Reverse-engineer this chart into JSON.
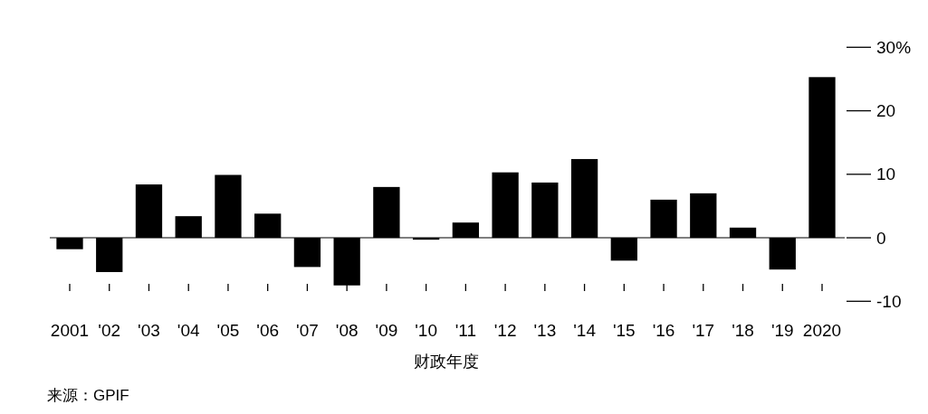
{
  "chart_data": {
    "type": "bar",
    "xlabel": "财政年度",
    "annotations": [
      "来源：GPIF"
    ],
    "categories": [
      "2001",
      "'02",
      "'03",
      "'04",
      "'05",
      "'06",
      "'07",
      "'08",
      "'09",
      "'10",
      "'11",
      "'12",
      "'13",
      "'14",
      "'15",
      "'16",
      "'17",
      "'18",
      "'19",
      "2020"
    ],
    "values": [
      -1.8,
      -5.4,
      8.4,
      3.4,
      9.9,
      3.8,
      -4.6,
      -7.5,
      8.0,
      -0.3,
      2.4,
      10.3,
      8.7,
      12.4,
      -3.6,
      6.0,
      7.0,
      1.6,
      -5.0,
      25.3
    ],
    "color": "#000000",
    "ylim": [
      -10,
      30
    ],
    "yticks": [
      -10,
      0,
      10,
      20,
      {
        "value": 30,
        "label": "30%"
      }
    ]
  }
}
